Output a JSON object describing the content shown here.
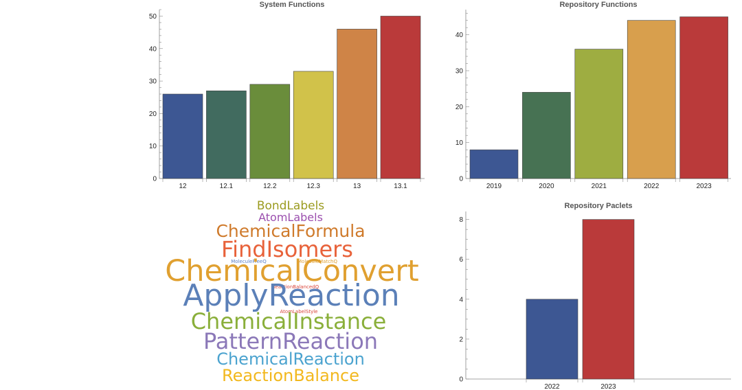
{
  "chart_data": [
    {
      "type": "bar",
      "title": "System Functions",
      "categories": [
        "12",
        "12.1",
        "12.2",
        "12.3",
        "13",
        "13.1"
      ],
      "values": [
        26,
        27,
        29,
        33,
        46,
        50
      ],
      "colors": [
        "#3d5793",
        "#416b5f",
        "#6a8d3b",
        "#d1c24a",
        "#cf8447",
        "#ba3a3a"
      ],
      "ylim": [
        0,
        52
      ],
      "yticks": [
        0,
        10,
        20,
        30,
        40,
        50
      ],
      "xlabel": "",
      "ylabel": ""
    },
    {
      "type": "bar",
      "title": "Repository Functions",
      "categories": [
        "2019",
        "2020",
        "2021",
        "2022",
        "2023"
      ],
      "values": [
        8,
        24,
        36,
        44,
        45
      ],
      "colors": [
        "#3d5793",
        "#477253",
        "#9ead41",
        "#d89f4d",
        "#ba3a3a"
      ],
      "ylim": [
        0,
        47
      ],
      "yticks": [
        0,
        10,
        20,
        30,
        40
      ],
      "xlabel": "",
      "ylabel": ""
    },
    {
      "type": "bar",
      "title": "Repository Paclets",
      "categories": [
        "",
        "2022",
        "2023",
        ""
      ],
      "values": [
        0,
        4,
        8,
        0
      ],
      "colors": [
        "#3d5793",
        "#3d5793",
        "#ba3a3a",
        "#ba3a3a"
      ],
      "ylim": [
        0,
        8.4
      ],
      "yticks": [
        0,
        2,
        4,
        6,
        8
      ],
      "xlabel": "",
      "ylabel": ""
    }
  ],
  "wordcloud": [
    {
      "text": "BondLabels",
      "color": "#9b9b1f"
    },
    {
      "text": "AtomLabels",
      "color": "#9b4fae"
    },
    {
      "text": "ChemicalFormula",
      "color": "#cf7a2b"
    },
    {
      "text": "FindIsomers",
      "color": "#e8623a"
    },
    {
      "text": "MoleculeFreeQ",
      "color": "#5b7fc7"
    },
    {
      "text": "MoleculeMatchQ",
      "color": "#e0a030"
    },
    {
      "text": "ChemicalConvert",
      "color": "#e0a030"
    },
    {
      "text": "ReactionBalancedQ",
      "color": "#d9453a"
    },
    {
      "text": "ApplyReaction",
      "color": "#5b80b8"
    },
    {
      "text": "AtomLabelStyle",
      "color": "#d9453a"
    },
    {
      "text": "ChemicalInstance",
      "color": "#8aaf3a"
    },
    {
      "text": "PatternReaction",
      "color": "#8b78b8"
    },
    {
      "text": "ChemicalReaction",
      "color": "#4ba3cf"
    },
    {
      "text": "ReactionBalance",
      "color": "#f2b81e"
    }
  ]
}
